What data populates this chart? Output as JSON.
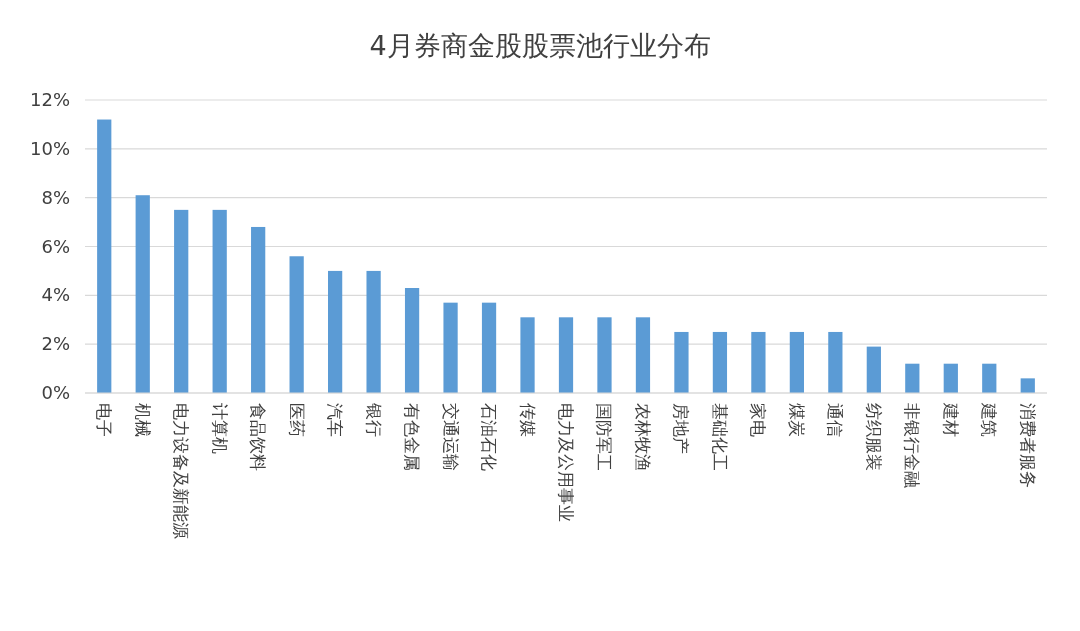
{
  "chart_data": {
    "type": "bar",
    "title": "4月券商金股股票池行业分布",
    "categories": [
      "电子",
      "机械",
      "电力设备及新能源",
      "计算机",
      "食品饮料",
      "医药",
      "汽车",
      "银行",
      "有色金属",
      "交通运输",
      "石油石化",
      "传媒",
      "电力及公用事业",
      "国防军工",
      "农林牧渔",
      "房地产",
      "基础化工",
      "家电",
      "煤炭",
      "通信",
      "纺织服装",
      "非银行金融",
      "建材",
      "建筑",
      "消费者服务"
    ],
    "values": [
      11.2,
      8.1,
      7.5,
      7.5,
      6.8,
      5.6,
      5.0,
      5.0,
      4.3,
      3.7,
      3.7,
      3.1,
      3.1,
      3.1,
      3.1,
      2.5,
      2.5,
      2.5,
      2.5,
      2.5,
      1.9,
      1.2,
      1.2,
      1.2,
      0.6
    ],
    "color": "#5b9bd5",
    "ylim": [
      0,
      12
    ],
    "yticks": [
      {
        "value": 0,
        "label": "0%"
      },
      {
        "value": 2,
        "label": "2%"
      },
      {
        "value": 4,
        "label": "4%"
      },
      {
        "value": 6,
        "label": "6%"
      },
      {
        "value": 8,
        "label": "8%"
      },
      {
        "value": 10,
        "label": "10%"
      },
      {
        "value": 12,
        "label": "12%"
      }
    ],
    "grid": "y"
  }
}
